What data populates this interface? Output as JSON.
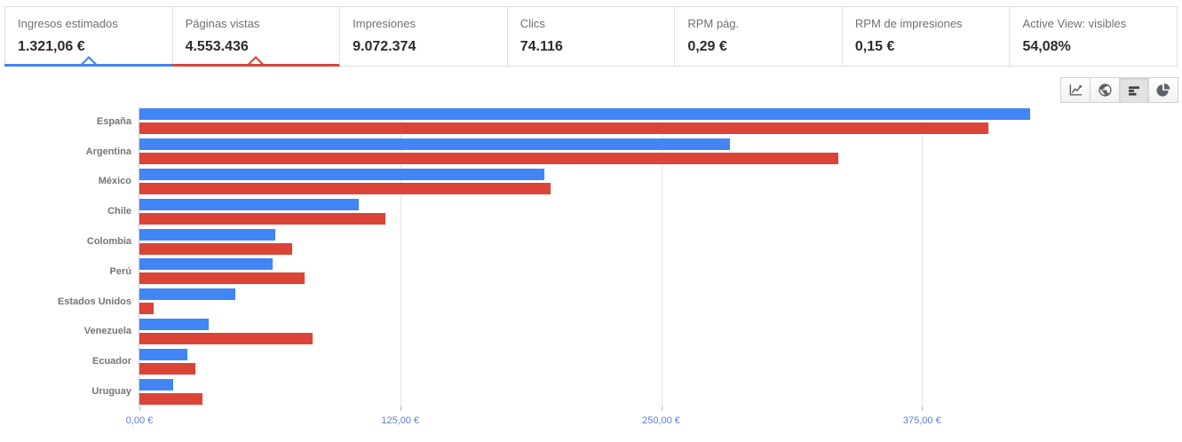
{
  "summary_cards": [
    {
      "label": "Ingresos estimados",
      "value": "1.321,06 €",
      "selected": true,
      "accent": "#4285f4"
    },
    {
      "label": "Páginas vistas",
      "value": "4.553.436",
      "selected": true,
      "accent": "#db4437"
    },
    {
      "label": "Impresiones",
      "value": "9.072.374",
      "selected": false,
      "accent": ""
    },
    {
      "label": "Clics",
      "value": "74.116",
      "selected": false,
      "accent": ""
    },
    {
      "label": "RPM pág.",
      "value": "0,29 €",
      "selected": false,
      "accent": ""
    },
    {
      "label": "RPM de impresiones",
      "value": "0,15 €",
      "selected": false,
      "accent": ""
    },
    {
      "label": "Active View: visibles",
      "value": "54,08%",
      "selected": false,
      "accent": ""
    }
  ],
  "toolbar": {
    "buttons": [
      {
        "name": "line-chart",
        "selected": false
      },
      {
        "name": "geo-map",
        "selected": false
      },
      {
        "name": "bar-chart",
        "selected": true
      },
      {
        "name": "pie-chart",
        "selected": false
      }
    ]
  },
  "chart_data": {
    "type": "bar",
    "orientation": "horizontal",
    "title": "",
    "categories": [
      "España",
      "Argentina",
      "México",
      "Chile",
      "Colombia",
      "Perú",
      "Estados Unidos",
      "Venezuela",
      "Ecuador",
      "Uruguay"
    ],
    "series": [
      {
        "name": "Ingresos estimados",
        "color": "#4285f4",
        "values": [
          427,
          283,
          194,
          105,
          65,
          64,
          46,
          33,
          23,
          16
        ]
      },
      {
        "name": "Páginas vistas",
        "color": "#db4437",
        "values": [
          407,
          335,
          197,
          118,
          73,
          79,
          7,
          83,
          27,
          30
        ]
      }
    ],
    "x_ticks": [
      {
        "value": 0,
        "label": "0,00 €"
      },
      {
        "value": 125,
        "label": "125,00 €"
      },
      {
        "value": 250,
        "label": "250,00 €"
      },
      {
        "value": 375,
        "label": "375,00 €"
      }
    ],
    "xlim": [
      0,
      497
    ],
    "grid": true,
    "legend": "none",
    "axis_label_color": "#5a7ce2"
  }
}
